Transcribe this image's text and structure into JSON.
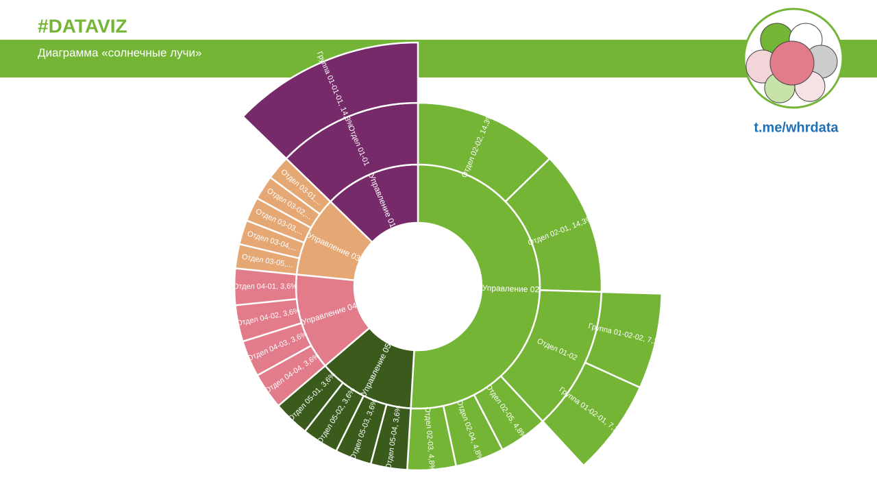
{
  "header": {
    "tag": "#DATAVIZ",
    "subtitle": "Диаграмма «солнечные лучи»",
    "link": "t.me/whrdata"
  },
  "chart_data": {
    "type": "sunburst",
    "nodes": [
      {
        "name": "Управление 02",
        "color": "#74b536",
        "children": [
          {
            "name": "Отдел 02-02, 14,3%",
            "value": 14.3
          },
          {
            "name": "Отдел 02-01, 14,3%",
            "value": 14.3
          },
          {
            "name": "Отдел 01-02",
            "children": [
              {
                "name": "Группа 01-02-02, 7,1%",
                "value": 7.1
              },
              {
                "name": "Группа 01-02-01, 7,1%",
                "value": 7.1
              }
            ]
          },
          {
            "name": "Отдел 02-05, 4,8%",
            "value": 4.8
          },
          {
            "name": "Отдел 02-04, 4,8%",
            "value": 4.8
          },
          {
            "name": "Отдел 02-03, 4,8%",
            "value": 4.8
          }
        ]
      },
      {
        "name": "Управление 05",
        "color": "#3b5b1d",
        "children": [
          {
            "name": "Отдел 05-04, 3,6%",
            "value": 3.6
          },
          {
            "name": "Отдел 05-03, 3,6%",
            "value": 3.6
          },
          {
            "name": "Отдел 05-02, 3,6%",
            "value": 3.6
          },
          {
            "name": "Отдел 05-01, 3,6%",
            "value": 3.6
          }
        ]
      },
      {
        "name": "Управление 04",
        "color": "#e27b8a",
        "children": [
          {
            "name": "Отдел 04-04, 3,6%",
            "value": 3.6
          },
          {
            "name": "Отдел 04-03, 3,6%",
            "value": 3.6
          },
          {
            "name": "Отдел 04-02, 3,6%",
            "value": 3.6
          },
          {
            "name": "Отдел 04-01, 3,6%",
            "value": 3.6
          }
        ]
      },
      {
        "name": "Управление 03",
        "color": "#e5a874",
        "children": [
          {
            "name": "Отдел 03-05,...",
            "value": 2.4
          },
          {
            "name": "Отдел 03-04,...",
            "value": 2.4
          },
          {
            "name": "Отдел 03-03,...",
            "value": 2.4
          },
          {
            "name": "Отдел 03-02,...",
            "value": 2.4
          },
          {
            "name": "Отдел 03-01,...",
            "value": 2.4
          }
        ]
      },
      {
        "name": "Управление 01",
        "color": "#772a6a",
        "children": [
          {
            "name": "Отдел 01-01",
            "children": [
              {
                "name": "Группа 01-01-01, 14,3%",
                "value": 14.3
              }
            ]
          }
        ]
      }
    ]
  }
}
